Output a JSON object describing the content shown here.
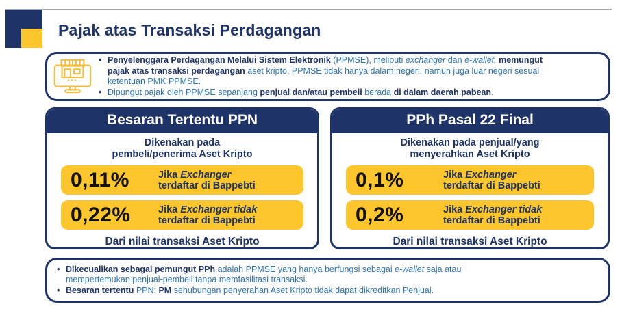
{
  "colors": {
    "navy": "#1E3468",
    "blue": "#2E74B5",
    "yellow": "#FDC62C",
    "yellowIcon": "#F3BE3F",
    "rateText": "#121212",
    "lineGray": "#A6A6A6"
  },
  "header": {
    "title": "Pajak atas Transaksi Perdagangan"
  },
  "intro_box": {
    "icon": "online-store-icon",
    "bullets": [
      {
        "segments": [
          {
            "t": "Penyelenggara Perdagangan Melalui Sistem Elektronik",
            "b": true
          },
          {
            "t": " (PPMSE), meliputi "
          },
          {
            "t": "exchanger",
            "i": true
          },
          {
            "t": " dan "
          },
          {
            "t": "e-wallet,",
            "i": true
          },
          {
            "t": " "
          },
          {
            "t": "memungut",
            "b": true
          },
          {
            "br": true
          },
          {
            "t": "pajak atas transaksi perdagangan",
            "b": true
          },
          {
            "t": " aset kripto. PPMSE tidak hanya dalam negeri, namun juga luar negeri sesuai"
          },
          {
            "br": true
          },
          {
            "t": "ketentuan PMK PPMSE."
          }
        ]
      },
      {
        "segments": [
          {
            "t": "Dipungut pajak oleh PPMSE sepanjang "
          },
          {
            "t": "penjual dan/atau pembeli",
            "b": true
          },
          {
            "t": " berada "
          },
          {
            "t": "di dalam daerah pabean",
            "b": true
          },
          {
            "t": "."
          }
        ]
      }
    ]
  },
  "panels": [
    {
      "title": "Besaran Tertentu PPN",
      "subtitle": [
        {
          "t": "Dikenakan pada"
        },
        {
          "br": true
        },
        {
          "t": "pembeli/penerima Aset Kripto"
        }
      ],
      "rates": [
        {
          "value": "0,11%",
          "desc": [
            {
              "t": "Jika "
            },
            {
              "t": "Exchanger",
              "i": true
            },
            {
              "br": true
            },
            {
              "t": "terdaftar di Bappebti"
            }
          ]
        },
        {
          "value": "0,22%",
          "desc": [
            {
              "t": "Jika "
            },
            {
              "t": "Exchanger tidak",
              "i": true
            },
            {
              "br": true
            },
            {
              "t": "terdaftar di Bappebti"
            }
          ]
        }
      ],
      "footer": "Dari nilai transaksi Aset Kripto"
    },
    {
      "title": "PPh Pasal 22 Final",
      "subtitle": [
        {
          "t": "Dikenakan pada penjual/yang"
        },
        {
          "br": true
        },
        {
          "t": "menyerahkan Aset Kripto"
        }
      ],
      "rates": [
        {
          "value": "0,1%",
          "desc": [
            {
              "t": "Jika "
            },
            {
              "t": "Exchanger",
              "i": true
            },
            {
              "br": true
            },
            {
              "t": "terdaftar di Bappebti"
            }
          ]
        },
        {
          "value": "0,2%",
          "desc": [
            {
              "t": "Jika "
            },
            {
              "t": "Exchanger tidak",
              "i": true
            },
            {
              "br": true
            },
            {
              "t": "terdaftar di Bappebti"
            }
          ]
        }
      ],
      "footer": "Dari nilai transaksi Aset Kripto"
    }
  ],
  "bottom_box": {
    "bullets": [
      {
        "segments": [
          {
            "t": "Dikecualikan sebagai pemungut PPh",
            "b": true
          },
          {
            "t": " adalah PPMSE yang hanya berfungsi sebagai "
          },
          {
            "t": "e-wallet",
            "i": true
          },
          {
            "t": " saja atau"
          },
          {
            "br": true
          },
          {
            "t": "mempertemukan penjual-pembeli tanpa memfasilitasi transaksi."
          }
        ]
      },
      {
        "segments": [
          {
            "t": "Besaran tertentu",
            "b": true
          },
          {
            "t": " PPN: "
          },
          {
            "t": "PM",
            "b": true
          },
          {
            "t": " sehubungan penyerahan Aset Kripto tidak dapat dikreditkan Penjual."
          }
        ]
      }
    ]
  }
}
